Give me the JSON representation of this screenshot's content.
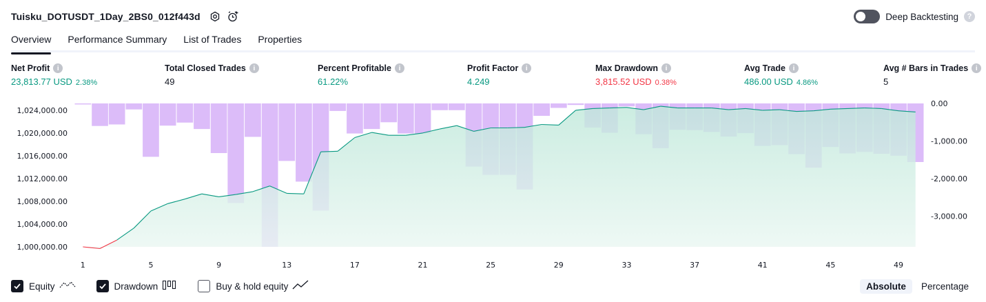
{
  "header": {
    "title": "Tuisku_DOTUSDT_1Day_2BS0_012f443d",
    "deep_backtesting_label": "Deep Backtesting",
    "deep_backtesting_enabled": false
  },
  "tabs": [
    {
      "label": "Overview",
      "active": true
    },
    {
      "label": "Performance Summary",
      "active": false
    },
    {
      "label": "List of Trades",
      "active": false
    },
    {
      "label": "Properties",
      "active": false
    }
  ],
  "metrics": [
    {
      "label": "Net Profit",
      "value": "23,813.77 USD",
      "sub": "2.38%",
      "tone": "pos"
    },
    {
      "label": "Total Closed Trades",
      "value": "49",
      "sub": "",
      "tone": "neu"
    },
    {
      "label": "Percent Profitable",
      "value": "61.22%",
      "sub": "",
      "tone": "pos"
    },
    {
      "label": "Profit Factor",
      "value": "4.249",
      "sub": "",
      "tone": "pos"
    },
    {
      "label": "Max Drawdown",
      "value": "3,815.52 USD",
      "sub": "0.38%",
      "tone": "neg"
    },
    {
      "label": "Avg Trade",
      "value": "486.00 USD",
      "sub": "4.86%",
      "tone": "pos"
    },
    {
      "label": "Avg # Bars in Trades",
      "value": "5",
      "sub": "",
      "tone": "neu"
    }
  ],
  "chart_data": {
    "type": "line",
    "x_ticks": [
      1,
      5,
      9,
      13,
      17,
      21,
      25,
      29,
      33,
      37,
      41,
      45,
      49
    ],
    "left_axis": {
      "ticks": [
        "1,000,000.00",
        "1,004,000.00",
        "1,008,000.00",
        "1,012,000.00",
        "1,016,000.00",
        "1,020,000.00",
        "1,024,000.00"
      ],
      "ylim": [
        1000000,
        1025200
      ]
    },
    "right_axis": {
      "ticks": [
        "0.00",
        "-1,000.00",
        "-2,000.00",
        "-3,000.00"
      ],
      "ylim": [
        -3815.52,
        0
      ]
    },
    "series": [
      {
        "name": "Equity",
        "axis": "left",
        "values": [
          1000000,
          999700,
          1001200,
          1003300,
          1006300,
          1007600,
          1008400,
          1009300,
          1008800,
          1009200,
          1009700,
          1010700,
          1009400,
          1009300,
          1016700,
          1016800,
          1019200,
          1020100,
          1019600,
          1019600,
          1020000,
          1020700,
          1021300,
          1020300,
          1020900,
          1020900,
          1021000,
          1021500,
          1021400,
          1024000,
          1024300,
          1024400,
          1024500,
          1024100,
          1024700,
          1024400,
          1024400,
          1024400,
          1024100,
          1024300,
          1024000,
          1024100,
          1023800,
          1023900,
          1024200,
          1024300,
          1024400,
          1024300,
          1023900,
          1023700
        ],
        "color": "#089981"
      },
      {
        "name": "Drawdown",
        "axis": "right",
        "values": [
          -10,
          -600,
          -560,
          -160,
          -1420,
          -590,
          -510,
          -680,
          -1320,
          -2650,
          -890,
          -3815.52,
          -1530,
          -2080,
          -2850,
          -200,
          -800,
          -680,
          -500,
          -800,
          -800,
          -180,
          -180,
          -1680,
          -1900,
          -1900,
          -2290,
          -330,
          -120,
          -40,
          -640,
          -780,
          -80,
          -820,
          -1190,
          -700,
          -710,
          -760,
          -880,
          -790,
          -1130,
          -1110,
          -1350,
          -1710,
          -1160,
          -1330,
          -1290,
          -1340,
          -1390,
          -1560
        ],
        "color": "#c590f5"
      }
    ]
  },
  "legend": [
    {
      "label": "Equity",
      "checked": true,
      "icon": "equity-line-icon"
    },
    {
      "label": "Drawdown",
      "checked": true,
      "icon": "drawdown-bars-icon"
    },
    {
      "label": "Buy & hold equity",
      "checked": false,
      "icon": "buy-hold-line-icon"
    }
  ],
  "view_mode": {
    "options": [
      "Absolute",
      "Percentage"
    ],
    "selected": "Absolute"
  },
  "colors": {
    "positive": "#089981",
    "negative": "#f23645",
    "drawdown_bar": "#c590f5",
    "equity_fill": "#d4f0e7"
  }
}
